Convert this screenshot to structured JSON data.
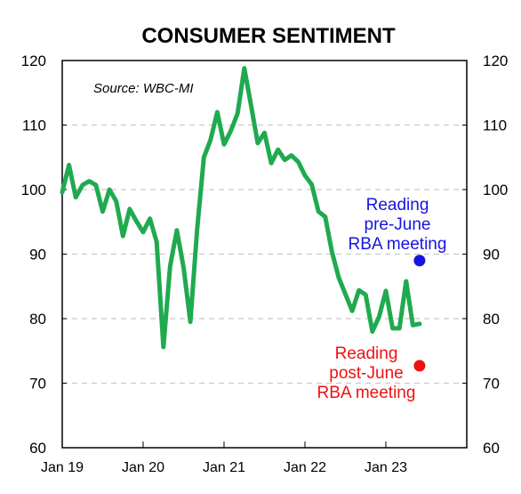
{
  "chart_data": {
    "type": "line",
    "title": "CONSUMER SENTIMENT",
    "source": "Source: WBC-MI",
    "ylim": [
      60,
      120
    ],
    "yticks": [
      "60",
      "70",
      "80",
      "90",
      "100",
      "110",
      "120"
    ],
    "xticks": [
      "Jan 19",
      "Jan 20",
      "Jan 21",
      "Jan 22",
      "Jan 23"
    ],
    "grid": true,
    "colors": {
      "series": "#1faa4f",
      "pre": "#1515e0",
      "post": "#ee1111",
      "grid": "#c8c8c8"
    },
    "series": [
      {
        "x": [
          "2019-01",
          "2019-02",
          "2019-03",
          "2019-04",
          "2019-05",
          "2019-06",
          "2019-07",
          "2019-08",
          "2019-09",
          "2019-10",
          "2019-11",
          "2019-12",
          "2020-01",
          "2020-02",
          "2020-03",
          "2020-04",
          "2020-05",
          "2020-06",
          "2020-07",
          "2020-08",
          "2020-09",
          "2020-10",
          "2020-11",
          "2020-12",
          "2021-01",
          "2021-02",
          "2021-03",
          "2021-04",
          "2021-05",
          "2021-06",
          "2021-07",
          "2021-08",
          "2021-09",
          "2021-10",
          "2021-11",
          "2021-12",
          "2022-01",
          "2022-02",
          "2022-03",
          "2022-04",
          "2022-05",
          "2022-06",
          "2022-07",
          "2022-08",
          "2022-09",
          "2022-10",
          "2022-11",
          "2022-12",
          "2023-01",
          "2023-02",
          "2023-03",
          "2023-04",
          "2023-05",
          "2023-06"
        ],
        "values": [
          99.6,
          103.8,
          98.8,
          100.7,
          101.3,
          100.7,
          96.6,
          100.0,
          98.2,
          92.8,
          97.0,
          95.1,
          93.4,
          95.5,
          91.9,
          75.6,
          88.1,
          93.7,
          87.9,
          79.5,
          93.8,
          105.0,
          107.7,
          112.0,
          107.0,
          109.1,
          111.8,
          118.8,
          113.1,
          107.2,
          108.8,
          104.1,
          106.2,
          104.6,
          105.3,
          104.3,
          102.2,
          100.8,
          96.6,
          95.8,
          90.4,
          86.4,
          83.8,
          81.2,
          84.4,
          83.7,
          78.0,
          80.3,
          84.3,
          78.5,
          78.5,
          85.8,
          79.0,
          79.2
        ]
      }
    ],
    "annotations": [
      {
        "label_lines": [
          "Reading",
          "pre-June",
          "RBA meeting"
        ],
        "x": "2023-06",
        "value": 89.0,
        "color": "blue"
      },
      {
        "label_lines": [
          "Reading",
          "post-June",
          "RBA meeting"
        ],
        "x": "2023-06",
        "value": 72.7,
        "color": "red"
      }
    ]
  }
}
